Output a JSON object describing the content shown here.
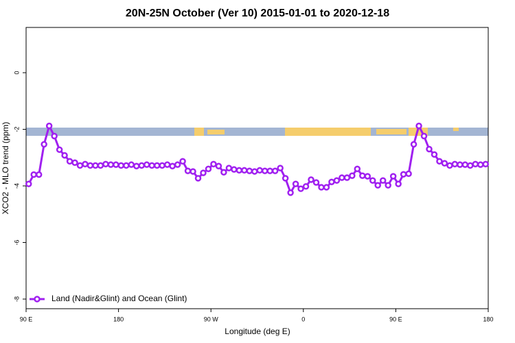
{
  "chart_data": {
    "type": "line",
    "title": "20N-25N October (Ver 10)   2015-01-01 to 2020-12-18",
    "x_label": "Longitude (deg E)",
    "y_label": "XCO2 - MLO trend (ppm)",
    "xlim": [
      90,
      540
    ],
    "xticks": [
      {
        "value": 90,
        "label": "90 E"
      },
      180,
      {
        "value": 270,
        "label": "90 W"
      },
      {
        "value": 360,
        "label": "0"
      },
      {
        "value": 450,
        "label": "90 E"
      },
      {
        "value": 540,
        "label": "180"
      }
    ],
    "ylim": [
      -8.34,
      1.6
    ],
    "yticks": [
      0,
      -2,
      -4,
      -6,
      -8
    ],
    "legend": "bottom-left",
    "x": [
      92.5,
      97.5,
      102.5,
      107.5,
      112.5,
      117.5,
      122.5,
      127.5,
      132.5,
      137.5,
      142.5,
      147.5,
      152.5,
      157.5,
      162.5,
      167.5,
      172.5,
      177.5,
      182.5,
      187.5,
      192.5,
      197.5,
      202.5,
      207.5,
      212.5,
      217.5,
      222.5,
      227.5,
      232.5,
      237.5,
      242.5,
      247.5,
      252.5,
      257.5,
      262.5,
      267.5,
      272.5,
      277.5,
      282.5,
      287.5,
      292.5,
      297.5,
      302.5,
      307.5,
      312.5,
      317.5,
      322.5,
      327.5,
      332.5,
      337.5,
      342.5,
      347.5,
      352.5,
      357.5,
      362.5,
      367.5,
      372.5,
      377.5,
      382.5,
      387.5,
      392.5,
      397.5,
      402.5,
      407.5,
      412.5,
      417.5,
      422.5,
      427.5,
      432.5,
      437.5,
      442.5,
      447.5,
      452.5,
      457.5,
      462.5,
      467.5,
      472.5,
      477.5,
      482.5,
      487.5,
      492.5,
      497.5,
      502.5,
      507.5,
      512.5,
      517.5,
      522.5,
      527.5,
      532.5,
      537.5
    ],
    "series": [
      {
        "name": "Land (Nadir&Glint) and Ocean (Glint)",
        "color": "#a020f0",
        "values": [
          -3.93,
          -3.6,
          -3.6,
          -2.53,
          -1.88,
          -2.24,
          -2.72,
          -2.92,
          -3.13,
          -3.18,
          -3.28,
          -3.23,
          -3.28,
          -3.28,
          -3.28,
          -3.23,
          -3.25,
          -3.25,
          -3.28,
          -3.28,
          -3.25,
          -3.3,
          -3.28,
          -3.25,
          -3.28,
          -3.28,
          -3.28,
          -3.25,
          -3.3,
          -3.25,
          -3.13,
          -3.47,
          -3.49,
          -3.73,
          -3.54,
          -3.4,
          -3.23,
          -3.3,
          -3.52,
          -3.37,
          -3.42,
          -3.45,
          -3.45,
          -3.47,
          -3.49,
          -3.45,
          -3.47,
          -3.47,
          -3.47,
          -3.37,
          -3.73,
          -4.24,
          -3.93,
          -4.1,
          -4.02,
          -3.78,
          -3.88,
          -4.05,
          -4.05,
          -3.86,
          -3.81,
          -3.71,
          -3.71,
          -3.64,
          -3.4,
          -3.64,
          -3.66,
          -3.81,
          -3.98,
          -3.81,
          -3.98,
          -3.66,
          -3.93,
          -3.59,
          -3.57,
          -2.53,
          -1.88,
          -2.24,
          -2.7,
          -2.89,
          -3.13,
          -3.2,
          -3.28,
          -3.23,
          -3.25,
          -3.25,
          -3.28,
          -3.23,
          -3.25,
          -3.23
        ]
      }
    ]
  }
}
